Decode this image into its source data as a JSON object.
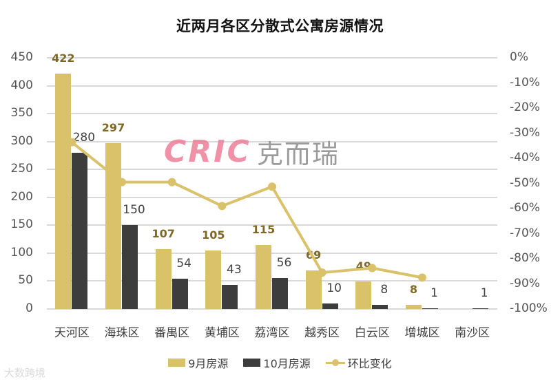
{
  "chart_data": {
    "type": "bar",
    "title": "近两月各区分散式公寓房源情况",
    "categories": [
      "天河区",
      "海珠区",
      "番禺区",
      "黄埔区",
      "荔湾区",
      "越秀区",
      "白云区",
      "增城区",
      "南沙区"
    ],
    "series": [
      {
        "name": "9月房源",
        "type": "bar",
        "axis": "left",
        "color": "#d9c26a",
        "values": [
          422,
          297,
          107,
          105,
          115,
          69,
          49,
          8,
          0
        ],
        "labels": [
          "422",
          "297",
          "107",
          "105",
          "115",
          "69",
          "49",
          "8",
          ""
        ]
      },
      {
        "name": "10月房源",
        "type": "bar",
        "axis": "left",
        "color": "#3d3d3d",
        "values": [
          280,
          150,
          54,
          43,
          56,
          10,
          8,
          1,
          1
        ],
        "labels": [
          "280",
          "150",
          "54",
          "43",
          "56",
          "10",
          "8",
          "1",
          "1"
        ]
      },
      {
        "name": "环比变化",
        "type": "line",
        "axis": "right",
        "color": "#d9c26a",
        "values": [
          -33.6,
          -49.5,
          -49.5,
          -59.0,
          -51.3,
          -85.5,
          -83.7,
          -87.5,
          null
        ],
        "unit": "%"
      }
    ],
    "xlabel": "",
    "ylabel": "",
    "ylim": [
      0,
      450
    ],
    "y_ticks": [
      "450",
      "400",
      "350",
      "300",
      "250",
      "200",
      "150",
      "100",
      "50",
      "0"
    ],
    "y2lim": [
      -100,
      0
    ],
    "y2_ticks": [
      "0%",
      "-10%",
      "-20%",
      "-30%",
      "-40%",
      "-50%",
      "-60%",
      "-70%",
      "-80%",
      "-90%",
      "-100%"
    ],
    "grid": true,
    "legend_position": "bottom"
  },
  "legend": {
    "items": [
      "9月房源",
      "10月房源",
      "环比变化"
    ]
  },
  "watermark": {
    "latin": "CRIC",
    "chinese": "克而瑞"
  },
  "corner_mark": "大数跨境"
}
